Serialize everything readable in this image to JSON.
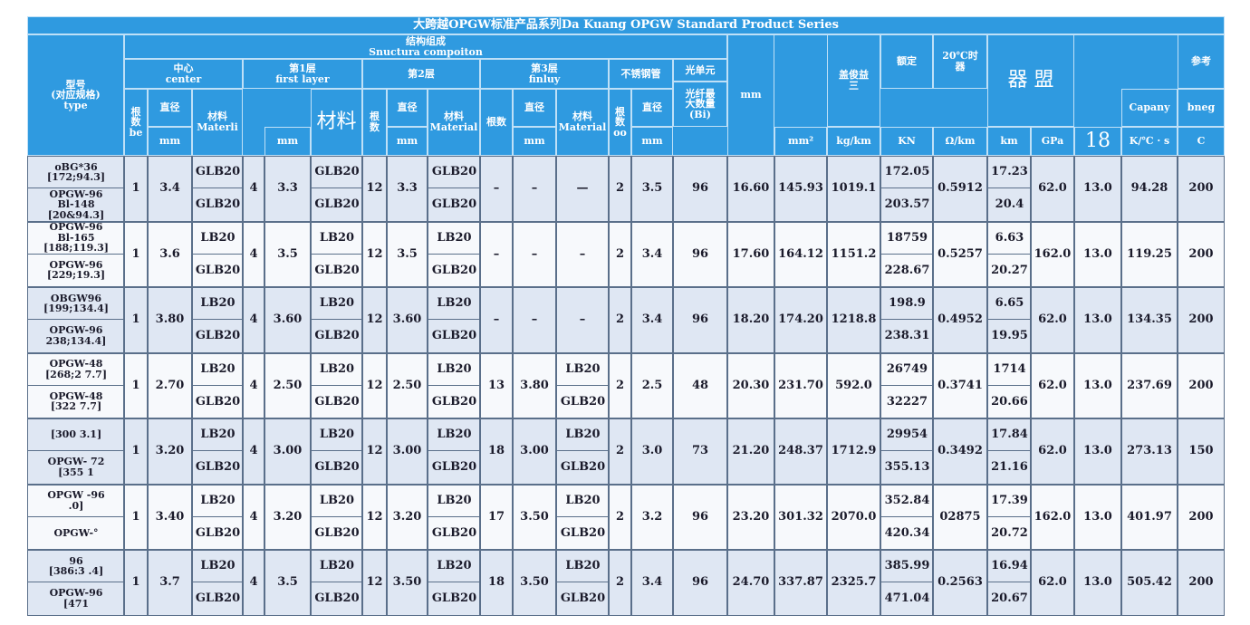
{
  "title": "大跨越OPGW标准产品系列Da Kuang OPGW Standard Product Series",
  "header": [
    "型号\n(对应规格)\ntype",
    "结构组成\nSnuctura compoiton",
    "中心\ncenter",
    "第1层\nfirst layer",
    "第2层",
    "第3层\nfinluy",
    "不锈钢管",
    "光单元",
    "光纤最\n大数量\n(Bi)",
    "根\n数\nbe",
    "直径",
    "mm",
    "材料\nMaterli",
    "mm",
    "材料",
    "根\n数",
    "直径",
    "mm",
    "材料\nMaterial",
    "根数",
    "直径",
    "mm",
    "材料\nMaterial",
    "根\n数\noo",
    "直径",
    "mm",
    "mm",
    "mm²",
    "盖俊益\n三",
    "kg/km",
    "额定",
    "KN",
    "20℃时\n器",
    "Ω/km",
    "器 盟",
    "km",
    "GPa",
    "18",
    "Capany",
    "K/℃ · s",
    "参考",
    "bneg",
    "C"
  ],
  "rows": [
    [
      [
        "oBG*36\n[172;94.3]",
        "OPGW-96\nBl-148\n[20&94.3]"
      ],
      "1",
      "3.4",
      [
        "GLB20",
        "GLB20"
      ],
      "4",
      "3.3",
      [
        "GLB20",
        "GLB20"
      ],
      "12",
      "3.3",
      [
        "GLB20",
        "GLB20"
      ],
      "–",
      "–",
      "—",
      "2",
      "3.5",
      "96",
      "16.60",
      "145.93",
      "1019.1",
      [
        "172.05",
        "203.57"
      ],
      "0.5912",
      [
        "17.23",
        "20.4"
      ],
      "62.0",
      "13.0",
      "94.28",
      "200"
    ],
    [
      [
        "OPGW-96\nBl-165\n[188;119.3]",
        "OPGW-96\n[229;19.3]"
      ],
      "1",
      "3.6",
      [
        "LB20",
        "GLB20"
      ],
      "4",
      "3.5",
      [
        "LB20",
        "GLB20"
      ],
      "12",
      "3.5",
      [
        "LB20",
        "GLB20"
      ],
      "–",
      "–",
      "–",
      "2",
      "3.4",
      "96",
      "17.60",
      "164.12",
      "1151.2",
      [
        "18759",
        "228.67"
      ],
      "0.5257",
      [
        "6.63",
        "20.27"
      ],
      "162.0",
      "13.0",
      "119.25",
      "200"
    ],
    [
      [
        "OBGW96\n[199;134.4]",
        "OPGW-96\n238;134.4]"
      ],
      "1",
      "3.80",
      [
        "LB20",
        "GLB20"
      ],
      "4",
      "3.60",
      [
        "LB20",
        "GLB20"
      ],
      "12",
      "3.60",
      [
        "LB20",
        "GLB20"
      ],
      "–",
      "–",
      "–",
      "2",
      "3.4",
      "96",
      "18.20",
      "174.20",
      "1218.8",
      [
        "198.9",
        "238.31"
      ],
      "0.4952",
      [
        "6.65",
        "19.95"
      ],
      "62.0",
      "13.0",
      "134.35",
      "200"
    ],
    [
      [
        "OPGW-48\n[268;2 7.7]",
        "OPGW-48\n[322   7.7]"
      ],
      "1",
      "2.70",
      [
        "LB20",
        "GLB20"
      ],
      "4",
      "2.50",
      [
        "LB20",
        "GLB20"
      ],
      "12",
      "2.50",
      [
        "LB20",
        "GLB20"
      ],
      "13",
      "3.80",
      [
        "LB20",
        "GLB20"
      ],
      "2",
      "2.5",
      "48",
      "20.30",
      "231.70",
      "592.0",
      [
        "26749",
        "32227"
      ],
      "0.3741",
      [
        "1714",
        "20.66"
      ],
      "62.0",
      "13.0",
      "237.69",
      "200"
    ],
    [
      [
        "[300   3.1]",
        "OPGW-  72\n[355    1"
      ],
      "1",
      "3.20",
      [
        "LB20",
        "GLB20"
      ],
      "4",
      "3.00",
      [
        "LB20",
        "GLB20"
      ],
      "12",
      "3.00",
      [
        "LB20",
        "GLB20"
      ],
      "18",
      "3.00",
      [
        "LB20",
        "GLB20"
      ],
      "2",
      "3.0",
      "73",
      "21.20",
      "248.37",
      "1712.9",
      [
        "29954",
        "355.13"
      ],
      "0.3492",
      [
        "17.84",
        "21.16"
      ],
      "62.0",
      "13.0",
      "273.13",
      "150"
    ],
    [
      [
        "OPGW  -96\n.0]",
        "OPGW-°"
      ],
      "1",
      "3.40",
      [
        "LB20",
        "GLB20"
      ],
      "4",
      "3.20",
      [
        "LB20",
        "GLB20"
      ],
      "12",
      "3.20",
      [
        "LB20",
        "GLB20"
      ],
      "17",
      "3.50",
      [
        "LB20",
        "GLB20"
      ],
      "2",
      "3.2",
      "96",
      "23.20",
      "301.32",
      "2070.0",
      [
        "352.84",
        "420.34"
      ],
      "02875",
      [
        "17.39",
        "20.72"
      ],
      "162.0",
      "13.0",
      "401.97",
      "200"
    ],
    [
      [
        "96\n[386:3   .4]",
        "OPGW-96\n[471"
      ],
      "1",
      "3.7",
      [
        "LB20",
        "GLB20"
      ],
      "4",
      "3.5",
      [
        "LB20",
        "GLB20"
      ],
      "12",
      "3.50",
      [
        "LB20",
        "GLB20"
      ],
      "18",
      "3.50",
      [
        "LB20",
        "GLB20"
      ],
      "2",
      "3.4",
      "96",
      "24.70",
      "337.87",
      "2325.7",
      [
        "385.99",
        "471.04"
      ],
      "0.2563",
      [
        "16.94",
        "20.67"
      ],
      "62.0",
      "13.0",
      "505.42",
      "200"
    ]
  ]
}
